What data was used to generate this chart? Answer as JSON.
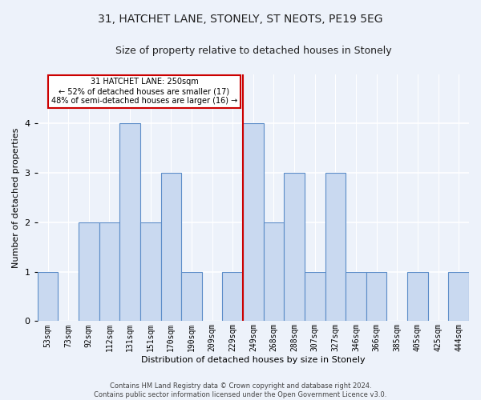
{
  "title1": "31, HATCHET LANE, STONELY, ST NEOTS, PE19 5EG",
  "title2": "Size of property relative to detached houses in Stonely",
  "xlabel": "Distribution of detached houses by size in Stonely",
  "ylabel": "Number of detached properties",
  "categories": [
    "53sqm",
    "73sqm",
    "92sqm",
    "112sqm",
    "131sqm",
    "151sqm",
    "170sqm",
    "190sqm",
    "209sqm",
    "229sqm",
    "249sqm",
    "268sqm",
    "288sqm",
    "307sqm",
    "327sqm",
    "346sqm",
    "366sqm",
    "385sqm",
    "405sqm",
    "425sqm",
    "444sqm"
  ],
  "values": [
    1,
    0,
    2,
    2,
    4,
    2,
    3,
    1,
    0,
    1,
    4,
    2,
    3,
    1,
    3,
    1,
    1,
    0,
    1,
    0,
    1
  ],
  "bar_color": "#c9d9f0",
  "bar_edge_color": "#5b8cc8",
  "ref_line_idx": 10,
  "reference_label": "31 HATCHET LANE: 250sqm",
  "smaller_pct": "52% of detached houses are smaller (17)",
  "larger_pct": "48% of semi-detached houses are larger (16)",
  "annotation_box_color": "#ffffff",
  "annotation_box_edge": "#cc0000",
  "ref_line_color": "#cc0000",
  "ylim": [
    0,
    5
  ],
  "yticks": [
    0,
    1,
    2,
    3,
    4
  ],
  "footer": "Contains HM Land Registry data © Crown copyright and database right 2024.\nContains public sector information licensed under the Open Government Licence v3.0.",
  "background_color": "#edf2fa",
  "grid_color": "#ffffff",
  "title_fontsize": 10,
  "subtitle_fontsize": 9,
  "tick_fontsize": 7,
  "ylabel_fontsize": 8,
  "xlabel_fontsize": 8,
  "footer_fontsize": 6
}
